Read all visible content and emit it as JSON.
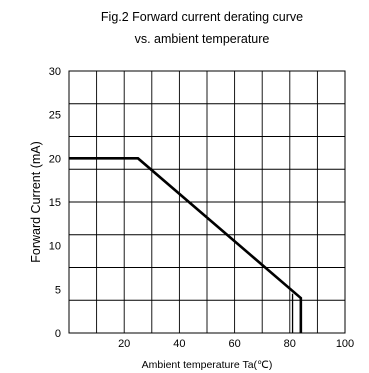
{
  "chart_data": {
    "type": "line",
    "title": [
      "Fig.2  Forward current derating curve",
      "vs. ambient temperature"
    ],
    "xlabel": "Ambient temperature Ta(℃)",
    "ylabel": "Forward Current (mA)",
    "xlim": [
      0,
      100
    ],
    "ylim": [
      0,
      30
    ],
    "x_ticks": [
      20,
      40,
      60,
      80,
      100
    ],
    "y_ticks": [
      0,
      5,
      10,
      15,
      20,
      25,
      30
    ],
    "x_grid_step": 10,
    "y_grid_step": 3.75,
    "grid": true,
    "legend": "none",
    "series": [
      {
        "color": "#000000",
        "points": [
          [
            0,
            20
          ],
          [
            25,
            20
          ],
          [
            84,
            4
          ],
          [
            84,
            0
          ]
        ]
      }
    ],
    "annotations": [
      {
        "type": "vertical-line",
        "x": 81,
        "y_from": 0,
        "y_to": 4.5
      }
    ]
  }
}
